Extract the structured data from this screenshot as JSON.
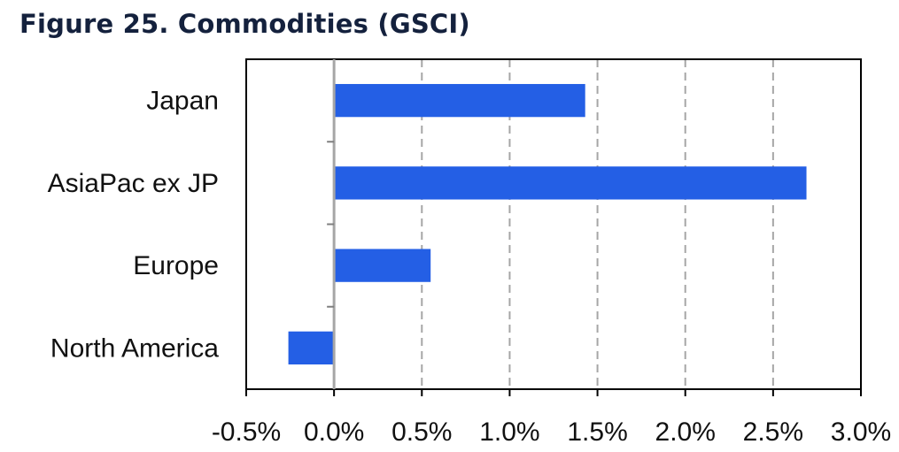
{
  "figure_title": "Figure 25. Commodities (GSCI)",
  "colors": {
    "bar": "#245fe5",
    "title": "#14213d",
    "gridline": "#a6a6a6",
    "axis": "#000000"
  },
  "chart_data": {
    "type": "bar",
    "orientation": "horizontal",
    "title": "Figure 25. Commodities (GSCI)",
    "xlabel": "",
    "ylabel": "",
    "categories": [
      "Japan",
      "AsiaPac ex JP",
      "Europe",
      "North America"
    ],
    "values": [
      1.43,
      2.69,
      0.55,
      -0.26
    ],
    "unit": "%",
    "xlim": [
      -0.5,
      3.0
    ],
    "x_ticks": [
      -0.5,
      0.0,
      0.5,
      1.0,
      1.5,
      2.0,
      2.5,
      3.0
    ],
    "x_tick_labels": [
      "-0.5%",
      "0.0%",
      "0.5%",
      "1.0%",
      "1.5%",
      "2.0%",
      "2.5%",
      "3.0%"
    ],
    "grid": "vertical dashed",
    "legend": "none"
  }
}
